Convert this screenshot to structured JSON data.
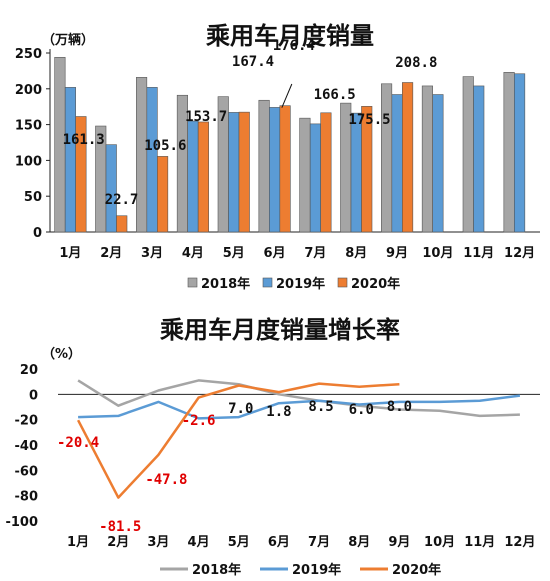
{
  "chart_data": [
    {
      "type": "bar",
      "title": "乘用车月度销量",
      "unit_label": "（万辆）",
      "categories": [
        "1月",
        "2月",
        "3月",
        "4月",
        "5月",
        "6月",
        "7月",
        "8月",
        "9月",
        "10月",
        "11月",
        "12月"
      ],
      "ylim": [
        0,
        250
      ],
      "yticks": [
        0,
        50,
        100,
        150,
        200,
        250
      ],
      "legend_position": "bottom",
      "series": [
        {
          "name": "2018年",
          "color": "#a5a5a5",
          "values": [
            244,
            148,
            216,
            191,
            189,
            184,
            159,
            180,
            207,
            204,
            217,
            223
          ]
        },
        {
          "name": "2019年",
          "color": "#5b9bd5",
          "values": [
            202,
            122,
            202,
            155,
            167,
            174,
            151,
            166,
            192,
            192,
            204,
            221
          ]
        },
        {
          "name": "2020年",
          "color": "#ed7d31",
          "values": [
            161.3,
            22.7,
            105.6,
            153.7,
            167.4,
            176.4,
            166.5,
            175.5,
            208.8,
            null,
            null,
            null
          ]
        }
      ],
      "data_labels": [
        "161.3",
        "22.7",
        "105.6",
        "153.7",
        "167.4",
        "176.4",
        "166.5",
        "175.5",
        "208.8"
      ]
    },
    {
      "type": "line",
      "title": "乘用车月度销量增长率",
      "unit_label": "（%）",
      "categories": [
        "1月",
        "2月",
        "3月",
        "4月",
        "5月",
        "6月",
        "7月",
        "8月",
        "9月",
        "10月",
        "11月",
        "12月"
      ],
      "ylim": [
        -100,
        20
      ],
      "yticks": [
        20,
        0,
        -20,
        -40,
        -60,
        -80,
        -100
      ],
      "legend_position": "bottom",
      "series": [
        {
          "name": "2018年",
          "color": "#a5a5a5",
          "values": [
            11,
            -9,
            3,
            11,
            8,
            0,
            -5,
            -9,
            -12,
            -13,
            -17,
            -16
          ]
        },
        {
          "name": "2019年",
          "color": "#5b9bd5",
          "values": [
            -18,
            -17,
            -6,
            -19,
            -18,
            -7,
            -5,
            -8,
            -6,
            -6,
            -5,
            -1
          ]
        },
        {
          "name": "2020年",
          "color": "#ed7d31",
          "values": [
            -20.4,
            -81.5,
            -47.8,
            -2.6,
            7.0,
            1.8,
            8.5,
            6.0,
            8.0,
            null,
            null,
            null
          ]
        }
      ],
      "data_labels": [
        "-20.4",
        "-81.5",
        "-47.8",
        "-2.6",
        "7.0",
        "1.8",
        "8.5",
        "6.0",
        "8.0"
      ]
    }
  ]
}
